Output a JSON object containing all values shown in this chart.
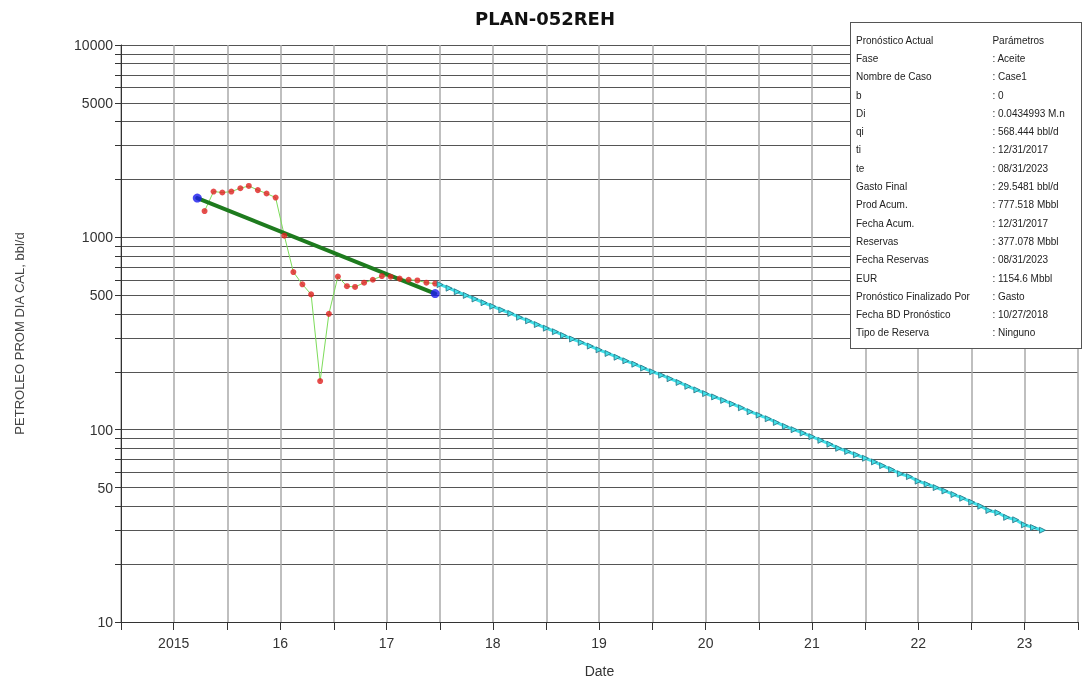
{
  "chart_data": {
    "type": "line",
    "title": "PLAN-052REH",
    "xlabel": "Date",
    "ylabel": "PETROLEO PROM DIA CAL, bbl/d",
    "log": "y",
    "grid": true,
    "xlim": [
      "2015-01-01",
      "2024-01-01"
    ],
    "xticks": [
      {
        "value": "2015-01-01",
        "label": null
      },
      {
        "value": "2015-07-01",
        "label": "2015"
      },
      {
        "value": "2016-01-01",
        "label": null
      },
      {
        "value": "2016-07-01",
        "label": "16"
      },
      {
        "value": "2017-01-01",
        "label": null
      },
      {
        "value": "2017-07-01",
        "label": "17"
      },
      {
        "value": "2018-01-01",
        "label": null
      },
      {
        "value": "2018-07-01",
        "label": "18"
      },
      {
        "value": "2019-01-01",
        "label": null
      },
      {
        "value": "2019-07-01",
        "label": "19"
      },
      {
        "value": "2020-01-01",
        "label": null
      },
      {
        "value": "2020-07-01",
        "label": "20"
      },
      {
        "value": "2021-01-01",
        "label": null
      },
      {
        "value": "2021-07-01",
        "label": "21"
      },
      {
        "value": "2022-01-01",
        "label": null
      },
      {
        "value": "2022-07-01",
        "label": "22"
      },
      {
        "value": "2023-01-01",
        "label": null
      },
      {
        "value": "2023-07-01",
        "label": "23"
      },
      {
        "value": "2024-01-01",
        "label": null
      }
    ],
    "ylim": [
      10,
      10000
    ],
    "yticks": [
      10,
      {
        "value": 20,
        "label": null
      },
      {
        "value": 30,
        "label": null
      },
      {
        "value": 40,
        "label": null
      },
      50,
      {
        "value": 60,
        "label": null
      },
      {
        "value": 70,
        "label": null
      },
      {
        "value": 80,
        "label": null
      },
      {
        "value": 90,
        "label": null
      },
      100,
      {
        "value": 200,
        "label": null
      },
      {
        "value": 300,
        "label": null
      },
      {
        "value": 400,
        "label": null
      },
      500,
      {
        "value": 600,
        "label": null
      },
      {
        "value": 700,
        "label": null
      },
      {
        "value": 800,
        "label": null
      },
      {
        "value": 900,
        "label": null
      },
      1000,
      {
        "value": 2000,
        "label": null
      },
      {
        "value": 3000,
        "label": null
      },
      {
        "value": 4000,
        "label": null
      },
      5000,
      {
        "value": 6000,
        "label": null
      },
      {
        "value": 7000,
        "label": null
      },
      {
        "value": 8000,
        "label": null
      },
      {
        "value": 9000,
        "label": null
      },
      10000
    ],
    "series": [
      {
        "marker": "none",
        "color": "#7ddc5a",
        "x": [
          "2015-10-15",
          "2015-11-15",
          "2015-12-15",
          "2016-01-15",
          "2016-02-15",
          "2016-03-15",
          "2016-04-15",
          "2016-05-15",
          "2016-06-15",
          "2016-07-15",
          "2016-08-15",
          "2016-09-15",
          "2016-10-15",
          "2016-11-15",
          "2016-12-15",
          "2017-01-15",
          "2017-02-15",
          "2017-03-15",
          "2017-04-15",
          "2017-05-15",
          "2017-06-15",
          "2017-07-15",
          "2017-08-15",
          "2017-09-15",
          "2017-10-15",
          "2017-11-15",
          "2017-12-15"
        ],
        "values": [
          1370,
          1730,
          1710,
          1730,
          1800,
          1850,
          1760,
          1690,
          1610,
          1020,
          660,
          570,
          505,
          179,
          400,
          625,
          557,
          552,
          581,
          602,
          629,
          624,
          610,
          602,
          597,
          581,
          575
        ]
      },
      {
        "marker": "none",
        "color": "#1e7b1e",
        "x": [
          "2015-09-20",
          "2017-12-15"
        ],
        "values": [
          1600,
          510
        ]
      },
      {
        "type": "scatter",
        "marker": "circle",
        "color": "#e02020",
        "x": [
          "2015-10-15",
          "2015-11-15",
          "2015-12-15",
          "2016-01-15",
          "2016-02-15",
          "2016-03-15",
          "2016-04-15",
          "2016-05-15",
          "2016-06-15",
          "2016-07-15",
          "2016-08-15",
          "2016-09-15",
          "2016-10-15",
          "2016-11-15",
          "2016-12-15",
          "2017-01-15",
          "2017-02-15",
          "2017-03-15",
          "2017-04-15",
          "2017-05-15",
          "2017-06-15",
          "2017-07-15",
          "2017-08-15",
          "2017-09-15",
          "2017-10-15",
          "2017-11-15",
          "2017-12-15"
        ],
        "values": [
          1370,
          1730,
          1710,
          1730,
          1800,
          1850,
          1760,
          1690,
          1610,
          1020,
          660,
          570,
          505,
          179,
          400,
          625,
          557,
          552,
          581,
          602,
          629,
          624,
          610,
          602,
          597,
          581,
          575
        ]
      },
      {
        "type": "scatter",
        "marker": "circle",
        "color": "#1a1aee",
        "x": [
          "2015-09-20",
          "2017-12-15"
        ],
        "values": [
          1600,
          510
        ]
      },
      {
        "marker": "triangle",
        "color": "#40e0e8",
        "x": [
          "2018-01-01",
          "2018-02-01",
          "2018-03-01",
          "2018-04-01",
          "2018-05-01",
          "2018-06-01",
          "2018-07-01",
          "2018-08-01",
          "2018-09-01",
          "2018-10-01",
          "2018-11-01",
          "2018-12-01",
          "2019-01-01",
          "2019-02-01",
          "2019-03-01",
          "2019-04-01",
          "2019-05-01",
          "2019-06-01",
          "2019-07-01",
          "2019-08-01",
          "2019-09-01",
          "2019-10-01",
          "2019-11-01",
          "2019-12-01",
          "2020-01-01",
          "2020-02-01",
          "2020-03-01",
          "2020-04-01",
          "2020-05-01",
          "2020-06-01",
          "2020-07-01",
          "2020-08-01",
          "2020-09-01",
          "2020-10-01",
          "2020-11-01",
          "2020-12-01",
          "2021-01-01",
          "2021-02-01",
          "2021-03-01",
          "2021-04-01",
          "2021-05-01",
          "2021-06-01",
          "2021-07-01",
          "2021-08-01",
          "2021-09-01",
          "2021-10-01",
          "2021-11-01",
          "2021-12-01",
          "2022-01-01",
          "2022-02-01",
          "2022-03-01",
          "2022-04-01",
          "2022-05-01",
          "2022-06-01",
          "2022-07-01",
          "2022-08-01",
          "2022-09-01",
          "2022-10-01",
          "2022-11-01",
          "2022-12-01",
          "2023-01-01",
          "2023-02-01",
          "2023-03-01",
          "2023-04-01",
          "2023-05-01",
          "2023-06-01",
          "2023-07-01",
          "2023-08-01",
          "2023-09-01"
        ],
        "values": [
          568,
          544,
          521,
          499,
          478,
          457,
          438,
          419,
          402,
          384,
          368,
          352,
          337,
          323,
          309,
          296,
          284,
          272,
          260,
          249,
          238,
          228,
          219,
          209,
          200,
          192,
          184,
          176,
          168,
          161,
          154,
          148,
          142,
          136,
          130,
          124,
          119,
          114,
          109,
          104,
          100,
          96,
          92,
          88,
          84,
          80,
          77,
          74,
          71,
          68,
          65,
          62,
          59,
          57,
          54,
          52,
          50,
          48,
          46,
          44,
          42,
          40,
          38,
          37,
          35,
          34,
          32,
          31,
          30
        ]
      }
    ],
    "annotations": [
      "Pronóstico Actual",
      "Parámetros",
      "Fase",
      ": Aceite",
      "Nombre de Caso",
      ": Case1",
      "b",
      ": 0",
      "Di",
      ": 0.0434993 M.n",
      "qi",
      ": 568.444 bbl/d",
      "ti",
      ": 12/31/2017",
      "te",
      ": 08/31/2023",
      "Gasto Final",
      ": 29.5481 bbl/d",
      "Prod Acum.",
      ": 777.518 Mbbl",
      "Fecha Acum.",
      ": 12/31/2017",
      "Reservas",
      ": 377.078 Mbbl",
      "Fecha Reservas",
      ": 08/31/2023",
      "EUR",
      ": 1154.6 Mbbl",
      "Pronóstico Finalizado Por",
      ": Gasto",
      "Fecha BD Pronóstico",
      ": 10/27/2018",
      "Tipo de Reserva",
      ": Ninguno"
    ]
  }
}
